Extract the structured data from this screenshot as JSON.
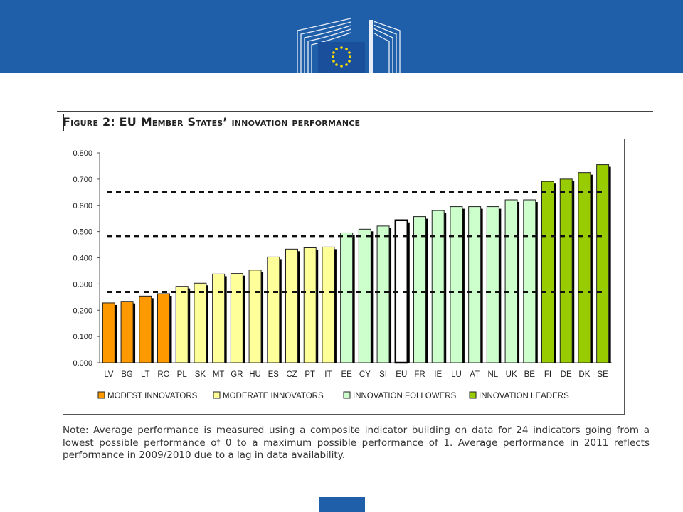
{
  "header": {
    "logo": "european-commission-logo",
    "brand_color": "#1f5ea8"
  },
  "figure": {
    "title": "Figure 2: EU Member States’ innovation performance",
    "note": "Note: Average performance is measured using a composite indicator building on data for 24 indicators going from a lowest possible performance of 0 to a maximum possible performance of 1. Average performance in 2011 reflects performance in 2009/2010 due to a lag in data availability."
  },
  "chart_data": {
    "type": "bar",
    "categories": [
      "LV",
      "BG",
      "LT",
      "RO",
      "PL",
      "SK",
      "MT",
      "GR",
      "HU",
      "ES",
      "CZ",
      "PT",
      "IT",
      "EE",
      "CY",
      "SI",
      "EU",
      "FR",
      "IE",
      "LU",
      "AT",
      "NL",
      "UK",
      "BE",
      "FI",
      "DE",
      "DK",
      "SE"
    ],
    "values": [
      0.228,
      0.234,
      0.254,
      0.263,
      0.291,
      0.303,
      0.338,
      0.34,
      0.353,
      0.403,
      0.433,
      0.438,
      0.441,
      0.495,
      0.509,
      0.521,
      0.543,
      0.557,
      0.58,
      0.595,
      0.595,
      0.595,
      0.621,
      0.621,
      0.691,
      0.7,
      0.725,
      0.755
    ],
    "groups": [
      "modest",
      "modest",
      "modest",
      "modest",
      "moderate",
      "moderate",
      "moderate",
      "moderate",
      "moderate",
      "moderate",
      "moderate",
      "moderate",
      "moderate",
      "follower",
      "follower",
      "follower",
      "eu",
      "follower",
      "follower",
      "follower",
      "follower",
      "follower",
      "follower",
      "follower",
      "leader",
      "leader",
      "leader",
      "leader"
    ],
    "group_colors": {
      "modest": "#ff9900",
      "moderate": "#ffff99",
      "follower": "#ccffcc",
      "eu": "#ffffff",
      "leader": "#99cc00"
    },
    "ylim": [
      0,
      0.8
    ],
    "yticks": [
      "0.000",
      "0.100",
      "0.200",
      "0.300",
      "0.400",
      "0.500",
      "0.600",
      "0.700",
      "0.800"
    ],
    "threshold_lines": [
      0.27,
      0.483,
      0.65
    ],
    "legend": [
      {
        "key": "modest",
        "label": "MODEST INNOVATORS"
      },
      {
        "key": "moderate",
        "label": "MODERATE INNOVATORS"
      },
      {
        "key": "follower",
        "label": "INNOVATION FOLLOWERS"
      },
      {
        "key": "leader",
        "label": "INNOVATION LEADERS"
      }
    ],
    "legend_position": "bottom",
    "grid": false
  }
}
